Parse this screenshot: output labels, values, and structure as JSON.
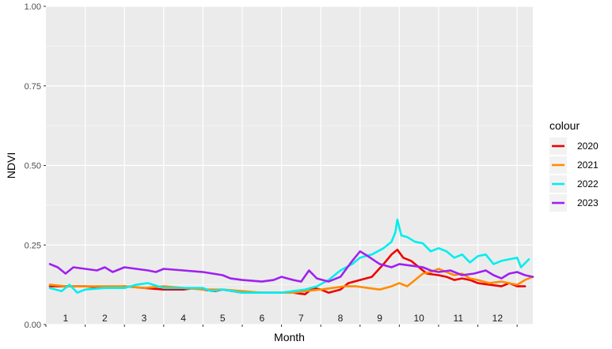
{
  "chart_data": {
    "type": "line",
    "title": "",
    "xlabel": "Month",
    "ylabel": "NDVI",
    "xlim": [
      0.0,
      12.4
    ],
    "ylim": [
      0,
      1
    ],
    "x_ticks": [
      "1",
      "2",
      "3",
      "4",
      "5",
      "6",
      "7",
      "8",
      "9",
      "10",
      "11",
      "12"
    ],
    "y_ticks": [
      "0.00",
      "0.25",
      "0.50",
      "0.75",
      "1.00"
    ],
    "grid": true,
    "legend": {
      "title": "colour",
      "position": "right"
    },
    "series": [
      {
        "name": "2020",
        "color": "#ee0000",
        "points": [
          [
            0.1,
            0.12
          ],
          [
            0.5,
            0.12
          ],
          [
            1.0,
            0.12
          ],
          [
            1.5,
            0.115
          ],
          [
            2.0,
            0.12
          ],
          [
            2.5,
            0.115
          ],
          [
            3.0,
            0.11
          ],
          [
            3.5,
            0.11
          ],
          [
            3.8,
            0.115
          ],
          [
            4.0,
            0.11
          ],
          [
            4.3,
            0.105
          ],
          [
            4.5,
            0.11
          ],
          [
            5.0,
            0.1
          ],
          [
            5.5,
            0.1
          ],
          [
            6.0,
            0.1
          ],
          [
            6.3,
            0.1
          ],
          [
            6.6,
            0.095
          ],
          [
            6.8,
            0.115
          ],
          [
            7.0,
            0.11
          ],
          [
            7.2,
            0.1
          ],
          [
            7.5,
            0.11
          ],
          [
            7.7,
            0.13
          ],
          [
            8.0,
            0.14
          ],
          [
            8.3,
            0.15
          ],
          [
            8.6,
            0.19
          ],
          [
            8.8,
            0.22
          ],
          [
            8.95,
            0.235
          ],
          [
            9.1,
            0.21
          ],
          [
            9.3,
            0.2
          ],
          [
            9.5,
            0.18
          ],
          [
            9.7,
            0.16
          ],
          [
            10.0,
            0.155
          ],
          [
            10.2,
            0.15
          ],
          [
            10.4,
            0.14
          ],
          [
            10.6,
            0.145
          ],
          [
            10.8,
            0.14
          ],
          [
            11.0,
            0.13
          ],
          [
            11.3,
            0.125
          ],
          [
            11.6,
            0.12
          ],
          [
            11.8,
            0.13
          ],
          [
            12.0,
            0.12
          ],
          [
            12.2,
            0.12
          ]
        ]
      },
      {
        "name": "2021",
        "color": "#ff8c00",
        "points": [
          [
            0.1,
            0.125
          ],
          [
            0.5,
            0.12
          ],
          [
            1.0,
            0.12
          ],
          [
            1.5,
            0.12
          ],
          [
            2.0,
            0.12
          ],
          [
            2.5,
            0.115
          ],
          [
            3.0,
            0.12
          ],
          [
            3.5,
            0.115
          ],
          [
            4.0,
            0.11
          ],
          [
            4.5,
            0.11
          ],
          [
            5.0,
            0.105
          ],
          [
            5.5,
            0.1
          ],
          [
            6.0,
            0.1
          ],
          [
            6.3,
            0.1
          ],
          [
            6.6,
            0.105
          ],
          [
            7.0,
            0.11
          ],
          [
            7.3,
            0.115
          ],
          [
            7.6,
            0.12
          ],
          [
            7.9,
            0.12
          ],
          [
            8.2,
            0.115
          ],
          [
            8.5,
            0.11
          ],
          [
            8.8,
            0.12
          ],
          [
            9.0,
            0.13
          ],
          [
            9.2,
            0.12
          ],
          [
            9.4,
            0.14
          ],
          [
            9.6,
            0.16
          ],
          [
            9.8,
            0.165
          ],
          [
            10.0,
            0.175
          ],
          [
            10.2,
            0.165
          ],
          [
            10.4,
            0.155
          ],
          [
            10.6,
            0.16
          ],
          [
            10.8,
            0.145
          ],
          [
            11.0,
            0.14
          ],
          [
            11.3,
            0.13
          ],
          [
            11.6,
            0.135
          ],
          [
            11.8,
            0.13
          ],
          [
            12.0,
            0.125
          ],
          [
            12.2,
            0.14
          ],
          [
            12.4,
            0.15
          ]
        ]
      },
      {
        "name": "2022",
        "color": "#00eeee",
        "points": [
          [
            0.1,
            0.115
          ],
          [
            0.4,
            0.105
          ],
          [
            0.6,
            0.125
          ],
          [
            0.8,
            0.1
          ],
          [
            1.0,
            0.11
          ],
          [
            1.5,
            0.115
          ],
          [
            2.0,
            0.115
          ],
          [
            2.3,
            0.125
          ],
          [
            2.6,
            0.13
          ],
          [
            3.0,
            0.115
          ],
          [
            3.5,
            0.115
          ],
          [
            4.0,
            0.115
          ],
          [
            4.2,
            0.105
          ],
          [
            4.5,
            0.11
          ],
          [
            5.0,
            0.1
          ],
          [
            5.5,
            0.1
          ],
          [
            6.0,
            0.1
          ],
          [
            6.3,
            0.105
          ],
          [
            6.6,
            0.11
          ],
          [
            6.9,
            0.12
          ],
          [
            7.2,
            0.14
          ],
          [
            7.5,
            0.17
          ],
          [
            7.8,
            0.19
          ],
          [
            8.0,
            0.21
          ],
          [
            8.3,
            0.22
          ],
          [
            8.6,
            0.24
          ],
          [
            8.8,
            0.26
          ],
          [
            8.9,
            0.29
          ],
          [
            8.95,
            0.33
          ],
          [
            9.05,
            0.28
          ],
          [
            9.2,
            0.275
          ],
          [
            9.4,
            0.26
          ],
          [
            9.6,
            0.255
          ],
          [
            9.8,
            0.23
          ],
          [
            10.0,
            0.24
          ],
          [
            10.2,
            0.23
          ],
          [
            10.4,
            0.21
          ],
          [
            10.6,
            0.22
          ],
          [
            10.8,
            0.195
          ],
          [
            11.0,
            0.215
          ],
          [
            11.2,
            0.22
          ],
          [
            11.4,
            0.19
          ],
          [
            11.6,
            0.2
          ],
          [
            11.8,
            0.205
          ],
          [
            12.0,
            0.21
          ],
          [
            12.1,
            0.18
          ],
          [
            12.3,
            0.205
          ]
        ]
      },
      {
        "name": "2023",
        "color": "#a020f0",
        "points": [
          [
            0.1,
            0.19
          ],
          [
            0.3,
            0.18
          ],
          [
            0.5,
            0.16
          ],
          [
            0.7,
            0.18
          ],
          [
            1.0,
            0.175
          ],
          [
            1.3,
            0.17
          ],
          [
            1.5,
            0.18
          ],
          [
            1.7,
            0.165
          ],
          [
            2.0,
            0.18
          ],
          [
            2.3,
            0.175
          ],
          [
            2.6,
            0.17
          ],
          [
            2.8,
            0.165
          ],
          [
            3.0,
            0.175
          ],
          [
            3.5,
            0.17
          ],
          [
            4.0,
            0.165
          ],
          [
            4.5,
            0.155
          ],
          [
            4.7,
            0.145
          ],
          [
            5.0,
            0.14
          ],
          [
            5.5,
            0.135
          ],
          [
            5.8,
            0.14
          ],
          [
            6.0,
            0.15
          ],
          [
            6.3,
            0.14
          ],
          [
            6.5,
            0.135
          ],
          [
            6.7,
            0.17
          ],
          [
            6.9,
            0.145
          ],
          [
            7.2,
            0.135
          ],
          [
            7.5,
            0.15
          ],
          [
            7.8,
            0.2
          ],
          [
            8.0,
            0.23
          ],
          [
            8.2,
            0.215
          ],
          [
            8.5,
            0.19
          ],
          [
            8.8,
            0.18
          ],
          [
            9.0,
            0.19
          ],
          [
            9.3,
            0.185
          ],
          [
            9.6,
            0.18
          ],
          [
            9.8,
            0.17
          ],
          [
            10.0,
            0.165
          ],
          [
            10.3,
            0.17
          ],
          [
            10.6,
            0.155
          ],
          [
            10.9,
            0.16
          ],
          [
            11.2,
            0.17
          ],
          [
            11.4,
            0.155
          ],
          [
            11.6,
            0.145
          ],
          [
            11.8,
            0.16
          ],
          [
            12.0,
            0.165
          ],
          [
            12.2,
            0.155
          ],
          [
            12.4,
            0.15
          ]
        ]
      }
    ]
  }
}
